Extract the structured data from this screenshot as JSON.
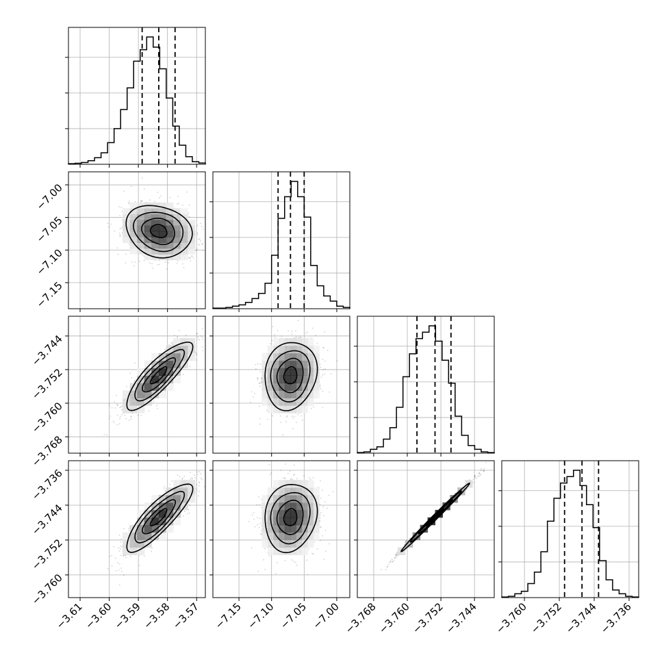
{
  "chart_data": [
    {
      "type": "corner",
      "grid": true,
      "params": [
        {
          "name": "",
          "range": [
            -3.614,
            -3.567
          ],
          "ticks": [
            -3.61,
            -3.6,
            -3.59,
            -3.58,
            -3.57
          ],
          "tick_labels": [
            "−3.61",
            "−3.60",
            "−3.59",
            "−3.58",
            "−3.57"
          ],
          "quantiles": [
            -3.5887,
            -3.583,
            -3.5774
          ],
          "hist_bins": [
            0.005,
            0.008,
            0.014,
            0.028,
            0.052,
            0.09,
            0.17,
            0.28,
            0.43,
            0.6,
            0.81,
            0.9,
            1.0,
            0.92,
            0.75,
            0.52,
            0.3,
            0.15,
            0.06,
            0.02,
            0.01
          ]
        },
        {
          "name": "",
          "range": [
            -7.19,
            -6.98
          ],
          "ticks": [
            -7.15,
            -7.1,
            -7.05,
            -7.0
          ],
          "tick_labels": [
            "−7.15",
            "−7.10",
            "−7.05",
            "−7.00"
          ],
          "quantiles": [
            -7.09,
            -7.071,
            -7.05
          ],
          "hist_bins": [
            0.005,
            0.005,
            0.01,
            0.02,
            0.03,
            0.05,
            0.08,
            0.12,
            0.2,
            0.42,
            0.71,
            0.88,
            1.0,
            0.88,
            0.72,
            0.34,
            0.18,
            0.1,
            0.06,
            0.02,
            0.01
          ]
        },
        {
          "name": "",
          "range": [
            -3.7719,
            -3.7393
          ],
          "ticks": [
            -3.768,
            -3.76,
            -3.752,
            -3.744
          ],
          "tick_labels": [
            "−3.768",
            "−3.760",
            "−3.752",
            "−3.744"
          ],
          "quantiles": [
            -3.7577,
            -3.7534,
            -3.7496
          ],
          "hist_bins": [
            0.005,
            0.01,
            0.03,
            0.05,
            0.11,
            0.2,
            0.36,
            0.6,
            0.78,
            0.9,
            0.95,
            1.0,
            0.88,
            0.73,
            0.55,
            0.29,
            0.14,
            0.06,
            0.03,
            0.01,
            0.005
          ]
        },
        {
          "name": "",
          "range": [
            -3.7652,
            -3.7338
          ],
          "ticks": [
            -3.76,
            -3.752,
            -3.744,
            -3.736
          ],
          "tick_labels": [
            "−3.760",
            "−3.752",
            "−3.744",
            "−3.736"
          ],
          "quantiles": [
            -3.7508,
            -3.7468,
            -3.743
          ],
          "hist_bins": [
            0.005,
            0.01,
            0.03,
            0.05,
            0.11,
            0.2,
            0.36,
            0.6,
            0.78,
            0.9,
            0.95,
            1.0,
            0.88,
            0.73,
            0.55,
            0.29,
            0.14,
            0.06,
            0.03,
            0.01,
            0.005
          ]
        }
      ],
      "correlations": {
        "1-0": -0.18,
        "2-0": 0.84,
        "2-1": 0.12,
        "3-0": 0.84,
        "3-1": 0.12,
        "3-2": 0.995
      },
      "hist_y_ticks": [
        0.28,
        0.56,
        0.84
      ],
      "colors": {
        "ink": "#000000",
        "grid": "#b0b0b0",
        "points": "#000000"
      }
    }
  ]
}
